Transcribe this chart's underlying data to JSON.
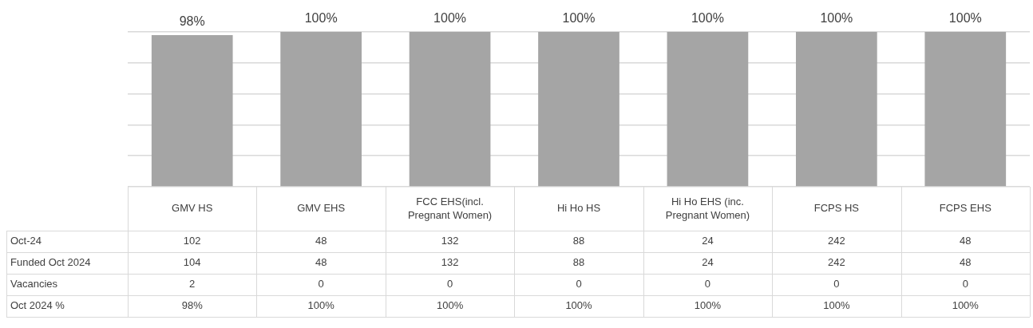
{
  "chart_data": {
    "type": "bar",
    "categories": [
      "GMV HS",
      "GMV EHS",
      "FCC EHS(incl. Pregnant Women)",
      "Hi Ho HS",
      "Hi Ho EHS (inc. Pregnant Women)",
      "FCPS HS",
      "FCPS EHS"
    ],
    "ylim": [
      0,
      100
    ],
    "yticks": [
      {
        "value": 0,
        "label": null
      },
      {
        "value": 20,
        "label": null
      },
      {
        "value": 40,
        "label": null
      },
      {
        "value": 60,
        "label": null
      },
      {
        "value": 80,
        "label": null
      },
      {
        "value": 100,
        "label": null
      }
    ],
    "grid": "y",
    "tick_labels": "x",
    "legend": false,
    "series": [
      {
        "name": "Oct-24",
        "type": "other",
        "values": [
          null,
          null,
          null,
          null,
          null,
          null,
          null
        ],
        "value_labels": [
          "102",
          "48",
          "132",
          "88",
          "24",
          "242",
          "48"
        ]
      },
      {
        "name": "Funded Oct 2024",
        "type": "other",
        "values": [
          null,
          null,
          null,
          null,
          null,
          null,
          null
        ],
        "value_labels": [
          "104",
          "48",
          "132",
          "88",
          "24",
          "242",
          "48"
        ]
      },
      {
        "name": "Vacancies",
        "type": "other",
        "values": [
          null,
          null,
          null,
          null,
          null,
          null,
          null
        ],
        "value_labels": [
          "2",
          "0",
          "0",
          "0",
          "0",
          "0",
          "0"
        ]
      },
      {
        "name": "Oct 2024 %",
        "color": "#a5a5a5",
        "values": [
          98,
          100,
          100,
          100,
          100,
          100,
          100
        ],
        "value_labels": [
          "98%",
          "100%",
          "100%",
          "100%",
          "100%",
          "100%",
          "100%"
        ]
      }
    ]
  }
}
